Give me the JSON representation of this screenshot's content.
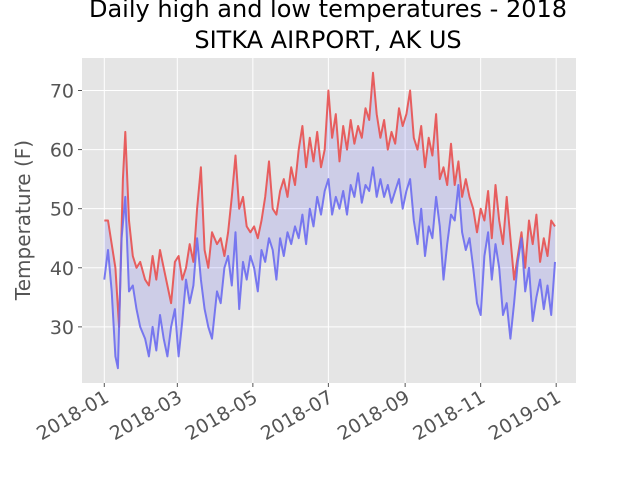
{
  "chart_data": {
    "type": "line",
    "title_line1": "Daily high and low temperatures - 2018",
    "title_line2": "SITKA AIRPORT, AK US",
    "xlabel": "",
    "ylabel": "Temperature (F)",
    "x_range": [
      "2017-12-14",
      "2019-01-17"
    ],
    "ylim": [
      20.5,
      75.5
    ],
    "grid": true,
    "legend": "none",
    "x_ticks": [
      "2018-01",
      "2018-03",
      "2018-05",
      "2018-07",
      "2018-09",
      "2018-11",
      "2019-01"
    ],
    "y_ticks": [
      30,
      40,
      50,
      60,
      70
    ],
    "fill_between": {
      "color": "#0000ff",
      "alpha": 0.1
    },
    "series": [
      {
        "id": "high",
        "color": "#e8504f",
        "points": [
          [
            "2018-01-01",
            48
          ],
          [
            "2018-01-04",
            48
          ],
          [
            "2018-01-07",
            44
          ],
          [
            "2018-01-10",
            40
          ],
          [
            "2018-01-13",
            30
          ],
          [
            "2018-01-16",
            55
          ],
          [
            "2018-01-18",
            63
          ],
          [
            "2018-01-21",
            48
          ],
          [
            "2018-01-24",
            42
          ],
          [
            "2018-01-27",
            40
          ],
          [
            "2018-01-30",
            41
          ],
          [
            "2018-02-03",
            38
          ],
          [
            "2018-02-06",
            37
          ],
          [
            "2018-02-09",
            42
          ],
          [
            "2018-02-12",
            38
          ],
          [
            "2018-02-15",
            43
          ],
          [
            "2018-02-18",
            40
          ],
          [
            "2018-02-21",
            37
          ],
          [
            "2018-02-24",
            34
          ],
          [
            "2018-02-27",
            41
          ],
          [
            "2018-03-02",
            42
          ],
          [
            "2018-03-05",
            38
          ],
          [
            "2018-03-08",
            40
          ],
          [
            "2018-03-11",
            44
          ],
          [
            "2018-03-14",
            41
          ],
          [
            "2018-03-17",
            50
          ],
          [
            "2018-03-20",
            57
          ],
          [
            "2018-03-23",
            43
          ],
          [
            "2018-03-26",
            40
          ],
          [
            "2018-03-29",
            46
          ],
          [
            "2018-04-02",
            44
          ],
          [
            "2018-04-05",
            45
          ],
          [
            "2018-04-08",
            42
          ],
          [
            "2018-04-11",
            46
          ],
          [
            "2018-04-14",
            52
          ],
          [
            "2018-04-17",
            59
          ],
          [
            "2018-04-20",
            50
          ],
          [
            "2018-04-23",
            52
          ],
          [
            "2018-04-26",
            47
          ],
          [
            "2018-04-29",
            46
          ],
          [
            "2018-05-02",
            47
          ],
          [
            "2018-05-05",
            45
          ],
          [
            "2018-05-08",
            48
          ],
          [
            "2018-05-11",
            52
          ],
          [
            "2018-05-14",
            58
          ],
          [
            "2018-05-17",
            50
          ],
          [
            "2018-05-20",
            49
          ],
          [
            "2018-05-23",
            53
          ],
          [
            "2018-05-26",
            55
          ],
          [
            "2018-05-29",
            52
          ],
          [
            "2018-06-01",
            57
          ],
          [
            "2018-06-04",
            54
          ],
          [
            "2018-06-07",
            60
          ],
          [
            "2018-06-10",
            64
          ],
          [
            "2018-06-13",
            57
          ],
          [
            "2018-06-16",
            62
          ],
          [
            "2018-06-19",
            58
          ],
          [
            "2018-06-22",
            63
          ],
          [
            "2018-06-25",
            57
          ],
          [
            "2018-06-28",
            60
          ],
          [
            "2018-07-01",
            70
          ],
          [
            "2018-07-04",
            62
          ],
          [
            "2018-07-07",
            66
          ],
          [
            "2018-07-10",
            58
          ],
          [
            "2018-07-13",
            64
          ],
          [
            "2018-07-16",
            60
          ],
          [
            "2018-07-19",
            65
          ],
          [
            "2018-07-22",
            61
          ],
          [
            "2018-07-25",
            64
          ],
          [
            "2018-07-28",
            62
          ],
          [
            "2018-07-31",
            67
          ],
          [
            "2018-08-03",
            65
          ],
          [
            "2018-08-06",
            73
          ],
          [
            "2018-08-09",
            66
          ],
          [
            "2018-08-12",
            62
          ],
          [
            "2018-08-15",
            65
          ],
          [
            "2018-08-18",
            60
          ],
          [
            "2018-08-21",
            63
          ],
          [
            "2018-08-24",
            61
          ],
          [
            "2018-08-27",
            67
          ],
          [
            "2018-08-30",
            64
          ],
          [
            "2018-09-02",
            66
          ],
          [
            "2018-09-05",
            70
          ],
          [
            "2018-09-08",
            62
          ],
          [
            "2018-09-11",
            60
          ],
          [
            "2018-09-14",
            64
          ],
          [
            "2018-09-17",
            57
          ],
          [
            "2018-09-20",
            62
          ],
          [
            "2018-09-23",
            59
          ],
          [
            "2018-09-26",
            66
          ],
          [
            "2018-09-29",
            55
          ],
          [
            "2018-10-02",
            57
          ],
          [
            "2018-10-05",
            54
          ],
          [
            "2018-10-08",
            61
          ],
          [
            "2018-10-11",
            54
          ],
          [
            "2018-10-14",
            58
          ],
          [
            "2018-10-17",
            52
          ],
          [
            "2018-10-20",
            55
          ],
          [
            "2018-10-23",
            52
          ],
          [
            "2018-10-26",
            50
          ],
          [
            "2018-10-29",
            46
          ],
          [
            "2018-11-01",
            50
          ],
          [
            "2018-11-04",
            48
          ],
          [
            "2018-11-07",
            53
          ],
          [
            "2018-11-10",
            45
          ],
          [
            "2018-11-13",
            54
          ],
          [
            "2018-11-16",
            48
          ],
          [
            "2018-11-19",
            44
          ],
          [
            "2018-11-22",
            52
          ],
          [
            "2018-11-25",
            45
          ],
          [
            "2018-11-28",
            38
          ],
          [
            "2018-12-01",
            42
          ],
          [
            "2018-12-04",
            46
          ],
          [
            "2018-12-07",
            40
          ],
          [
            "2018-12-10",
            48
          ],
          [
            "2018-12-13",
            44
          ],
          [
            "2018-12-16",
            49
          ],
          [
            "2018-12-19",
            41
          ],
          [
            "2018-12-22",
            45
          ],
          [
            "2018-12-25",
            42
          ],
          [
            "2018-12-28",
            48
          ],
          [
            "2018-12-31",
            47
          ]
        ]
      },
      {
        "id": "low",
        "color": "#6c6cf0",
        "points": [
          [
            "2018-01-01",
            38
          ],
          [
            "2018-01-04",
            43
          ],
          [
            "2018-01-07",
            36
          ],
          [
            "2018-01-10",
            25
          ],
          [
            "2018-01-12",
            23
          ],
          [
            "2018-01-15",
            45
          ],
          [
            "2018-01-18",
            52
          ],
          [
            "2018-01-21",
            36
          ],
          [
            "2018-01-24",
            37
          ],
          [
            "2018-01-27",
            33
          ],
          [
            "2018-01-30",
            30
          ],
          [
            "2018-02-03",
            28
          ],
          [
            "2018-02-06",
            25
          ],
          [
            "2018-02-09",
            30
          ],
          [
            "2018-02-12",
            26
          ],
          [
            "2018-02-15",
            32
          ],
          [
            "2018-02-18",
            28
          ],
          [
            "2018-02-21",
            25
          ],
          [
            "2018-02-24",
            30
          ],
          [
            "2018-02-27",
            33
          ],
          [
            "2018-03-02",
            25
          ],
          [
            "2018-03-05",
            31
          ],
          [
            "2018-03-08",
            38
          ],
          [
            "2018-03-11",
            34
          ],
          [
            "2018-03-14",
            37
          ],
          [
            "2018-03-17",
            45
          ],
          [
            "2018-03-20",
            38
          ],
          [
            "2018-03-23",
            33
          ],
          [
            "2018-03-26",
            30
          ],
          [
            "2018-03-29",
            28
          ],
          [
            "2018-04-02",
            36
          ],
          [
            "2018-04-05",
            34
          ],
          [
            "2018-04-08",
            40
          ],
          [
            "2018-04-11",
            42
          ],
          [
            "2018-04-14",
            37
          ],
          [
            "2018-04-17",
            46
          ],
          [
            "2018-04-20",
            33
          ],
          [
            "2018-04-23",
            41
          ],
          [
            "2018-04-26",
            38
          ],
          [
            "2018-04-29",
            42
          ],
          [
            "2018-05-02",
            40
          ],
          [
            "2018-05-05",
            36
          ],
          [
            "2018-05-08",
            43
          ],
          [
            "2018-05-11",
            41
          ],
          [
            "2018-05-14",
            45
          ],
          [
            "2018-05-17",
            43
          ],
          [
            "2018-05-20",
            38
          ],
          [
            "2018-05-23",
            45
          ],
          [
            "2018-05-26",
            42
          ],
          [
            "2018-05-29",
            46
          ],
          [
            "2018-06-01",
            44
          ],
          [
            "2018-06-04",
            47
          ],
          [
            "2018-06-07",
            45
          ],
          [
            "2018-06-10",
            49
          ],
          [
            "2018-06-13",
            44
          ],
          [
            "2018-06-16",
            50
          ],
          [
            "2018-06-19",
            47
          ],
          [
            "2018-06-22",
            52
          ],
          [
            "2018-06-25",
            49
          ],
          [
            "2018-06-28",
            53
          ],
          [
            "2018-07-01",
            55
          ],
          [
            "2018-07-04",
            49
          ],
          [
            "2018-07-07",
            52
          ],
          [
            "2018-07-10",
            50
          ],
          [
            "2018-07-13",
            53
          ],
          [
            "2018-07-16",
            49
          ],
          [
            "2018-07-19",
            54
          ],
          [
            "2018-07-22",
            52
          ],
          [
            "2018-07-25",
            56
          ],
          [
            "2018-07-28",
            51
          ],
          [
            "2018-07-31",
            54
          ],
          [
            "2018-08-03",
            53
          ],
          [
            "2018-08-06",
            57
          ],
          [
            "2018-08-09",
            52
          ],
          [
            "2018-08-12",
            55
          ],
          [
            "2018-08-15",
            52
          ],
          [
            "2018-08-18",
            54
          ],
          [
            "2018-08-21",
            51
          ],
          [
            "2018-08-24",
            53
          ],
          [
            "2018-08-27",
            55
          ],
          [
            "2018-08-30",
            50
          ],
          [
            "2018-09-02",
            53
          ],
          [
            "2018-09-05",
            55
          ],
          [
            "2018-09-08",
            48
          ],
          [
            "2018-09-11",
            44
          ],
          [
            "2018-09-14",
            50
          ],
          [
            "2018-09-17",
            42
          ],
          [
            "2018-09-20",
            47
          ],
          [
            "2018-09-23",
            45
          ],
          [
            "2018-09-26",
            52
          ],
          [
            "2018-09-29",
            47
          ],
          [
            "2018-10-02",
            38
          ],
          [
            "2018-10-05",
            44
          ],
          [
            "2018-10-08",
            49
          ],
          [
            "2018-10-11",
            48
          ],
          [
            "2018-10-14",
            54
          ],
          [
            "2018-10-17",
            46
          ],
          [
            "2018-10-20",
            43
          ],
          [
            "2018-10-23",
            45
          ],
          [
            "2018-10-26",
            40
          ],
          [
            "2018-10-29",
            34
          ],
          [
            "2018-11-01",
            32
          ],
          [
            "2018-11-04",
            42
          ],
          [
            "2018-11-07",
            46
          ],
          [
            "2018-11-10",
            38
          ],
          [
            "2018-11-13",
            44
          ],
          [
            "2018-11-16",
            40
          ],
          [
            "2018-11-19",
            32
          ],
          [
            "2018-11-22",
            34
          ],
          [
            "2018-11-25",
            28
          ],
          [
            "2018-11-28",
            34
          ],
          [
            "2018-12-01",
            41
          ],
          [
            "2018-12-04",
            45
          ],
          [
            "2018-12-07",
            36
          ],
          [
            "2018-12-10",
            40
          ],
          [
            "2018-12-13",
            31
          ],
          [
            "2018-12-16",
            35
          ],
          [
            "2018-12-19",
            38
          ],
          [
            "2018-12-22",
            33
          ],
          [
            "2018-12-25",
            37
          ],
          [
            "2018-12-28",
            32
          ],
          [
            "2018-12-31",
            41
          ]
        ]
      }
    ]
  }
}
